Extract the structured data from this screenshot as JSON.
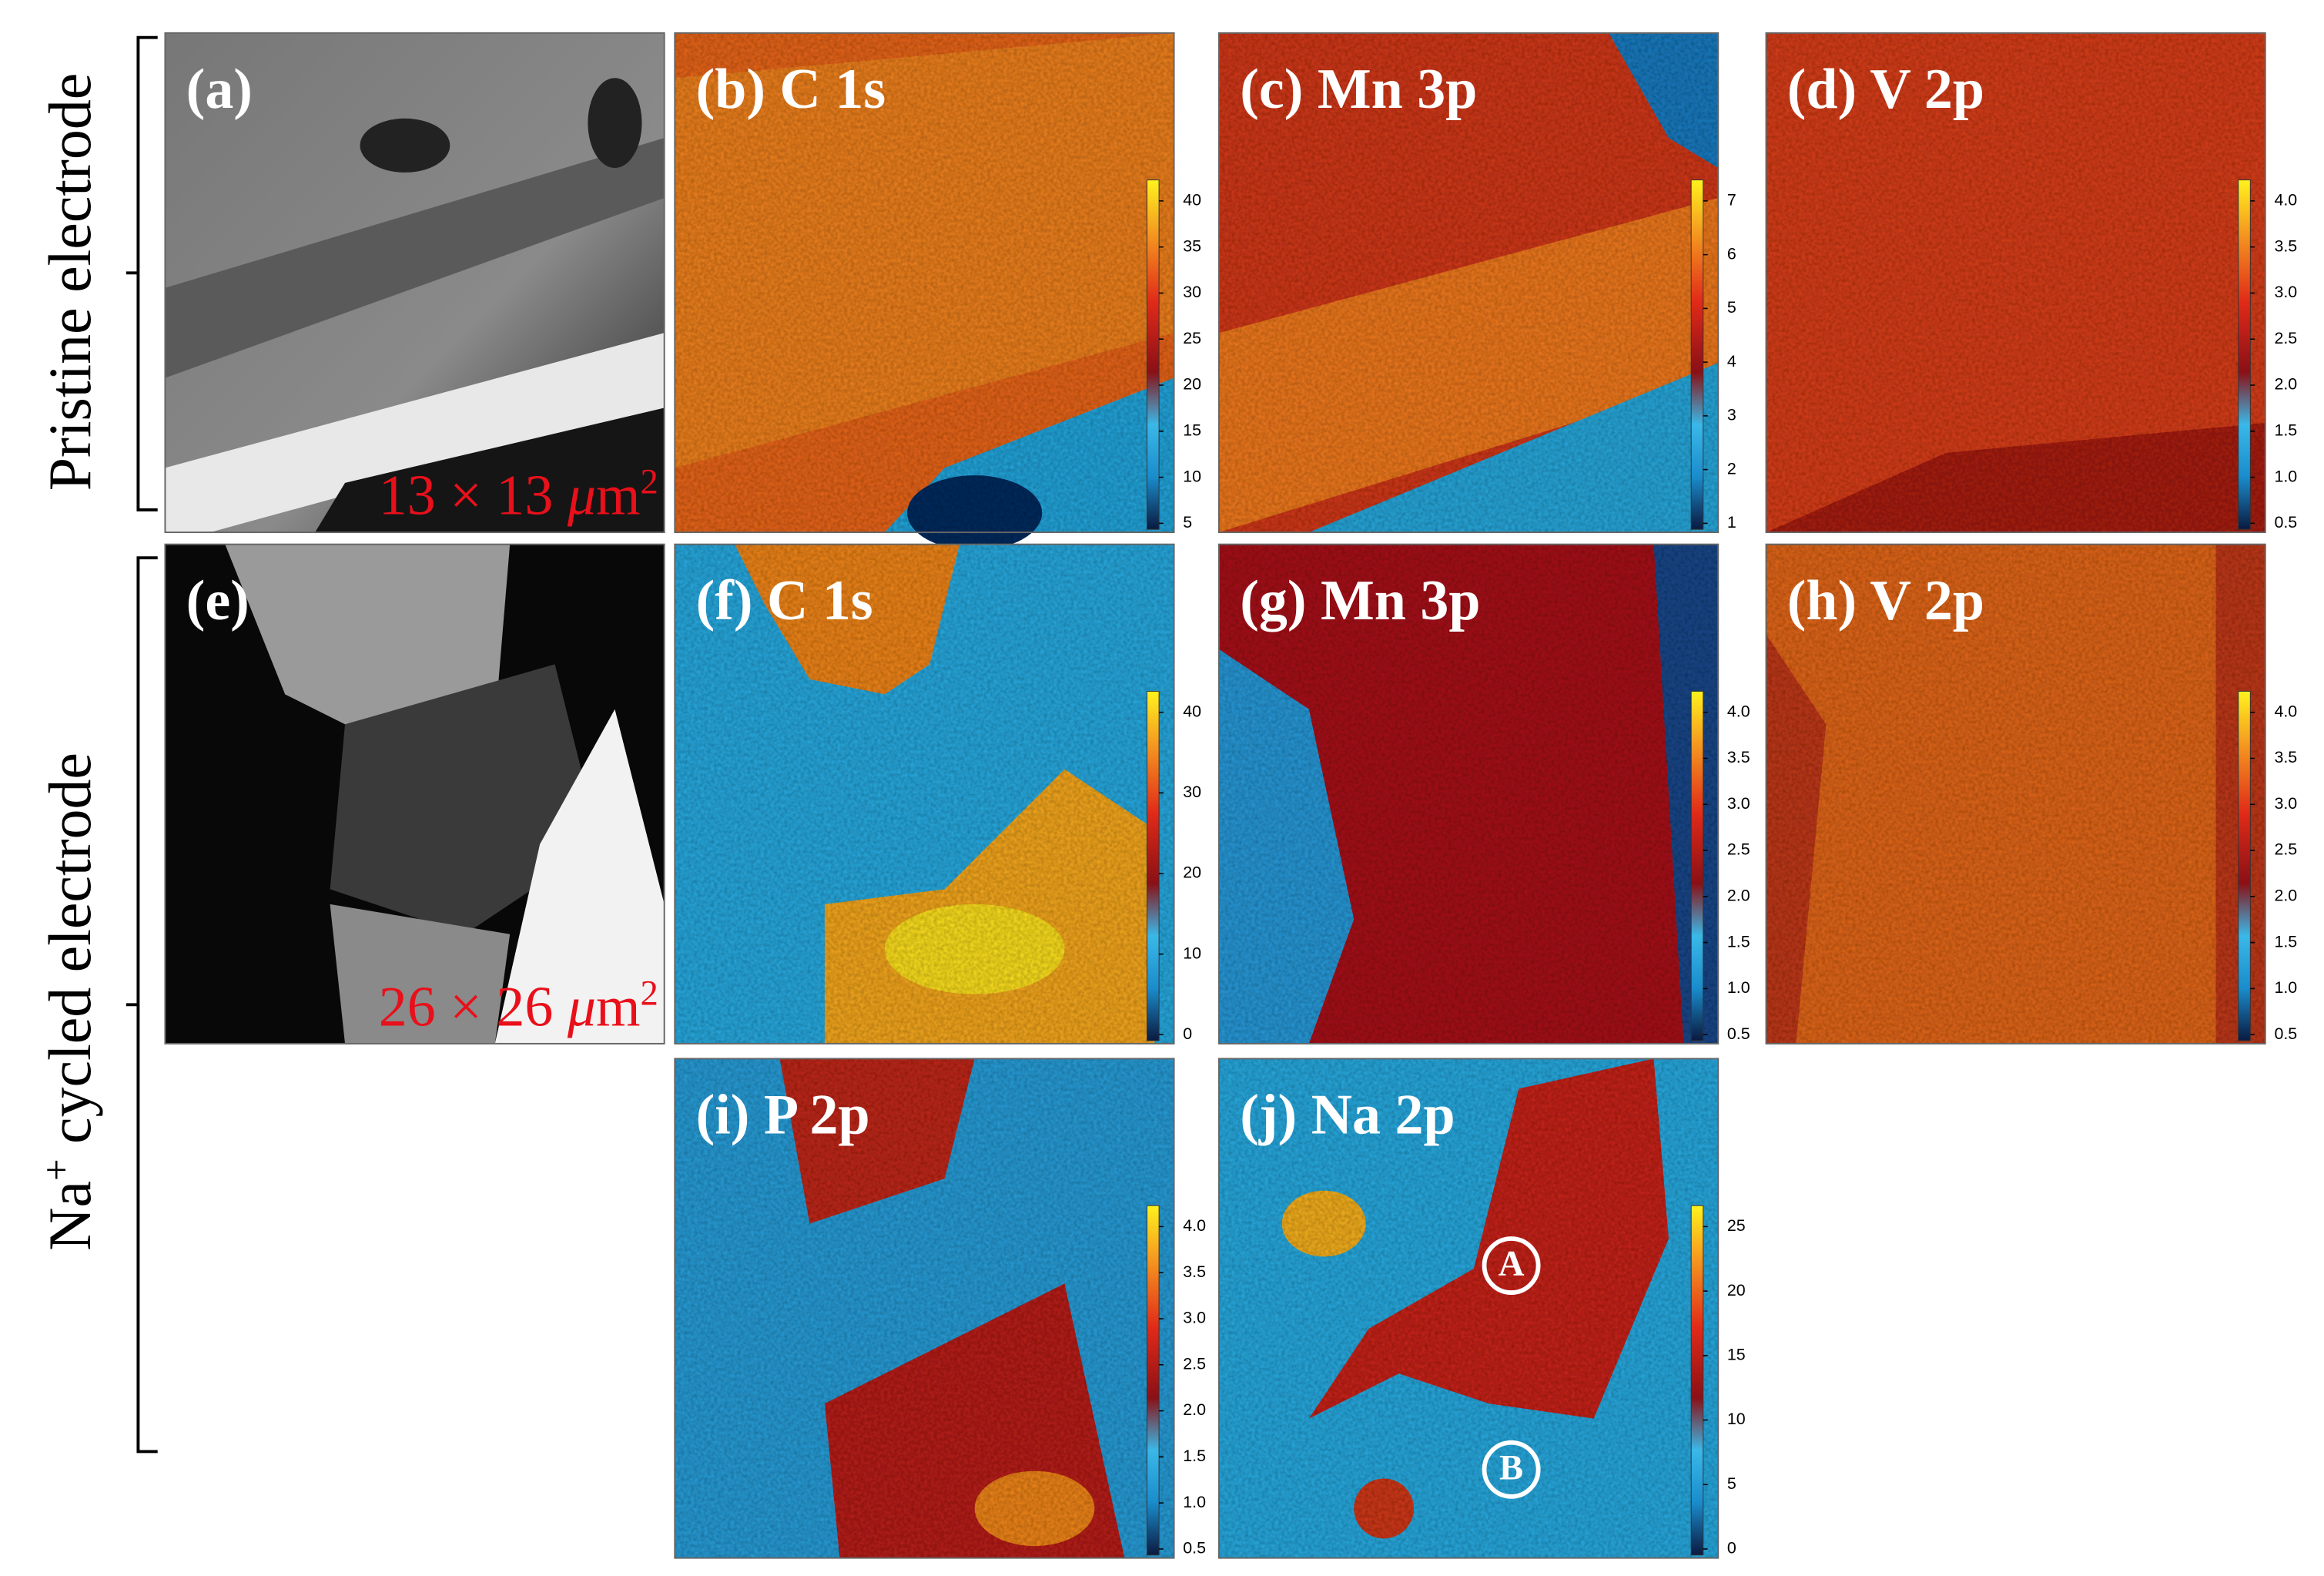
{
  "row_labels": [
    {
      "parts": [
        "Pristine electrode"
      ]
    },
    {
      "parts": [
        "Na",
        "+",
        " cycled electrode"
      ]
    }
  ],
  "panels": [
    {
      "label": "(a)",
      "scale": [
        "13 × 13 ",
        "μ",
        "m",
        "2"
      ]
    },
    {
      "label": "(b) C 1s",
      "colorbar": [
        "40",
        "35",
        "30",
        "25",
        "20",
        "15",
        "10",
        "5"
      ]
    },
    {
      "label": "(c) Mn 3p",
      "colorbar": [
        "7",
        "6",
        "5",
        "4",
        "3",
        "2",
        "1"
      ]
    },
    {
      "label": "(d) V 2p",
      "colorbar": [
        "4.0",
        "3.5",
        "3.0",
        "2.5",
        "2.0",
        "1.5",
        "1.0",
        "0.5"
      ]
    },
    {
      "label": "(e)",
      "scale": [
        "26 × 26 ",
        "μ",
        "m",
        "2"
      ]
    },
    {
      "label": "(f) C 1s",
      "colorbar": [
        "40",
        "30",
        "20",
        "10",
        "0"
      ]
    },
    {
      "label": "(g) Mn 3p",
      "colorbar": [
        "4.0",
        "3.5",
        "3.0",
        "2.5",
        "2.0",
        "1.5",
        "1.0",
        "0.5"
      ]
    },
    {
      "label": "(h) V 2p",
      "colorbar": [
        "4.0",
        "3.5",
        "3.0",
        "2.5",
        "2.0",
        "1.5",
        "1.0",
        "0.5"
      ]
    },
    {
      "label": "(i) P 2p",
      "colorbar": [
        "4.0",
        "3.5",
        "3.0",
        "2.5",
        "2.0",
        "1.5",
        "1.0",
        "0.5"
      ]
    },
    {
      "label": "(j) Na 2p",
      "colorbar": [
        "25",
        "20",
        "15",
        "10",
        "5",
        "0"
      ]
    }
  ],
  "markers": [
    "A",
    "B"
  ]
}
